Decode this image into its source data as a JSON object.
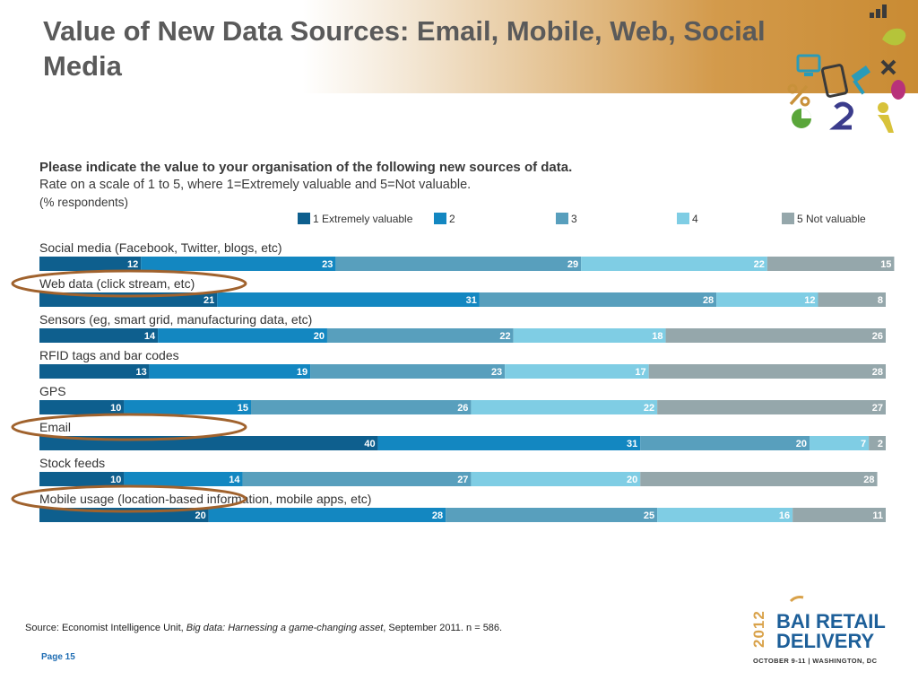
{
  "slide": {
    "title": "Value of New Data Sources: Email, Mobile, Web, Social Media",
    "source_prefix": "Source: Economist Intelligence Unit,",
    "source_title": "Big data: Harnessing a game-changing asset",
    "source_suffix": ", September 2011.  n = 586.",
    "page": "Page 15"
  },
  "logo": {
    "year": "2012",
    "brand_line1": "BAI RETAIL",
    "brand_line2": "DELIVERY",
    "dates": "OCTOBER 9-11 | WASHINGTON, DC"
  },
  "colors": [
    "#0e5f8e",
    "#1387c1",
    "#589fbd",
    "#7fcde4",
    "#95a7ab"
  ],
  "highlighted_rows": [
    1,
    5,
    7
  ],
  "chart_data": {
    "type": "bar",
    "orientation": "horizontal",
    "stacked": true,
    "title": "Please indicate the value to your organisation of the following new sources of data.",
    "subtitle": "Rate on a scale of 1 to 5, where 1=Extremely valuable and 5=Not valuable.",
    "note": "(% respondents)",
    "legend_position": "top",
    "xlim": [
      0,
      100
    ],
    "categories": [
      "Social media (Facebook, Twitter, blogs, etc)",
      "Web data (click stream, etc)",
      "Sensors (eg, smart grid, manufacturing data, etc)",
      "RFID tags and bar codes",
      "GPS",
      "Email",
      "Stock feeds",
      "Mobile usage (location-based information, mobile apps, etc)"
    ],
    "series": [
      {
        "name": "1 Extremely valuable",
        "values": [
          12,
          21,
          14,
          13,
          10,
          40,
          10,
          20
        ]
      },
      {
        "name": "2",
        "values": [
          23,
          31,
          20,
          19,
          15,
          31,
          14,
          28
        ]
      },
      {
        "name": "3",
        "values": [
          29,
          28,
          22,
          23,
          26,
          20,
          27,
          25
        ]
      },
      {
        "name": "4",
        "values": [
          22,
          12,
          18,
          17,
          22,
          7,
          20,
          16
        ]
      },
      {
        "name": "5 Not valuable",
        "values": [
          15,
          8,
          26,
          28,
          27,
          2,
          28,
          11
        ]
      }
    ]
  }
}
